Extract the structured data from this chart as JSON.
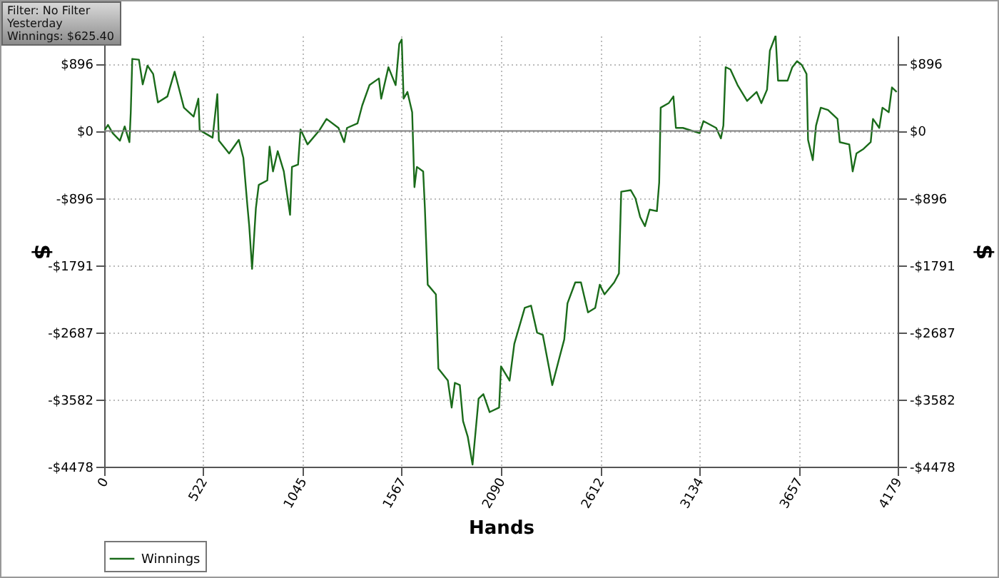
{
  "chart_data": {
    "type": "line",
    "xlabel": "Hands",
    "ylabel": "$",
    "y2label": "$",
    "annotations": [
      "Filter: No Filter",
      "Yesterday",
      "Winnings: $625.40"
    ],
    "x": [
      0,
      20,
      45,
      83,
      108,
      133,
      140,
      148,
      183,
      203,
      228,
      258,
      283,
      333,
      371,
      420,
      471,
      496,
      503,
      571,
      596,
      604,
      658,
      709,
      733,
      754,
      764,
      779,
      799,
      814,
      859,
      871,
      889,
      914,
      946,
      979,
      989,
      1021,
      1034,
      1071,
      1134,
      1171,
      1234,
      1264,
      1279,
      1334,
      1359,
      1397,
      1447,
      1459,
      1497,
      1535,
      1554,
      1567,
      1577,
      1597,
      1622,
      1634,
      1647,
      1680,
      1689,
      1704,
      1747,
      1760,
      1810,
      1830,
      1847,
      1873,
      1890,
      1915,
      1940,
      1972,
      1997,
      2030,
      2080,
      2090,
      2135,
      2160,
      2215,
      2248,
      2280,
      2310,
      2360,
      2398,
      2423,
      2440,
      2481,
      2511,
      2548,
      2586,
      2610,
      2635,
      2686,
      2711,
      2723,
      2773,
      2798,
      2823,
      2848,
      2873,
      2911,
      2923,
      2931,
      2973,
      2998,
      3011,
      3048,
      3136,
      3156,
      3223,
      3248,
      3261,
      3273,
      3298,
      3336,
      3386,
      3436,
      3461,
      3491,
      3506,
      3536,
      3549,
      3599,
      3624,
      3649,
      3674,
      3699,
      3707,
      3732,
      3749,
      3774,
      3812,
      3862,
      3874,
      3924,
      3942,
      3962,
      3999,
      4037,
      4049,
      4082,
      4099,
      4132,
      4149,
      4174
    ],
    "series": [
      {
        "name": "Winnings",
        "color": "#1a6b1a",
        "values": [
          0,
          80,
          -30,
          -130,
          60,
          -150,
          250,
          960,
          950,
          620,
          870,
          760,
          380,
          460,
          790,
          310,
          190,
          430,
          10,
          -90,
          490,
          -130,
          -300,
          -120,
          -360,
          -990,
          -1270,
          -1840,
          -1030,
          -720,
          -660,
          -210,
          -540,
          -270,
          -540,
          -1120,
          -480,
          -450,
          20,
          -180,
          10,
          160,
          40,
          -150,
          40,
          100,
          340,
          610,
          700,
          430,
          850,
          610,
          1160,
          1220,
          430,
          520,
          250,
          -750,
          -480,
          -540,
          -1030,
          -2050,
          -2180,
          -3170,
          -3330,
          -3690,
          -3360,
          -3390,
          -3870,
          -4080,
          -4450,
          -3570,
          -3510,
          -3750,
          -3690,
          -3140,
          -3330,
          -2840,
          -2360,
          -2330,
          -2690,
          -2720,
          -3390,
          -3020,
          -2780,
          -2300,
          -2020,
          -2020,
          -2420,
          -2360,
          -2050,
          -2180,
          -2020,
          -1900,
          -810,
          -790,
          -900,
          -1150,
          -1270,
          -1050,
          -1070,
          -690,
          310,
          370,
          460,
          40,
          40,
          -30,
          130,
          40,
          -100,
          70,
          850,
          820,
          610,
          400,
          520,
          370,
          550,
          1070,
          1270,
          670,
          670,
          850,
          930,
          880,
          760,
          -120,
          -390,
          70,
          310,
          280,
          160,
          -150,
          -180,
          -540,
          -300,
          -240,
          -150,
          160,
          40,
          310,
          250,
          580,
          520
        ]
      }
    ],
    "xlim": [
      0,
      4179
    ],
    "xticks": [
      0,
      522,
      1045,
      1567,
      2090,
      2612,
      3134,
      3657,
      4179
    ],
    "ylim": [
      -4478,
      1270
    ],
    "yticks": [
      {
        "value": 896,
        "label": "$896"
      },
      {
        "value": 0,
        "label": "$0"
      },
      {
        "value": -896,
        "label": "-$896"
      },
      {
        "value": -1791,
        "label": "-$1791"
      },
      {
        "value": -2687,
        "label": "-$2687"
      },
      {
        "value": -3582,
        "label": "-$3582"
      },
      {
        "value": -4478,
        "label": "-$4478"
      }
    ],
    "y2lim": [
      -4478,
      1270
    ],
    "y2ticks": [
      {
        "value": 896,
        "label": "$896"
      },
      {
        "value": 0,
        "label": "$0"
      },
      {
        "value": -896,
        "label": "-$896"
      },
      {
        "value": -1791,
        "label": "-$1791"
      },
      {
        "value": -2687,
        "label": "-$2687"
      },
      {
        "value": -3582,
        "label": "-$3582"
      },
      {
        "value": -4478,
        "label": "-$4478"
      }
    ],
    "ref_lines": [
      {
        "axis": "y",
        "value": 0,
        "color": "#808080"
      }
    ],
    "grid": true,
    "legend": "bottom left"
  }
}
